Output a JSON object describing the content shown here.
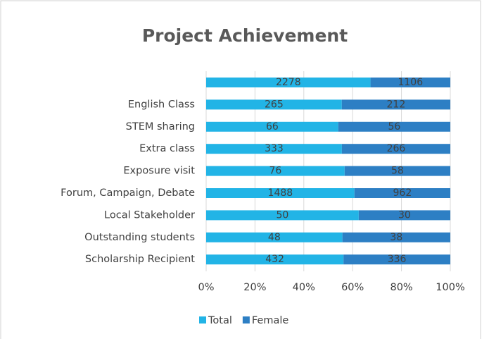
{
  "chart_data": {
    "type": "bar",
    "orientation": "horizontal",
    "stacking": "percent",
    "title": "Project Achievement",
    "categories": [
      null,
      "English Class",
      "STEM sharing",
      "Extra class",
      "Exposure visit ",
      "Forum, Campaign, Debate",
      "Local Stakeholder",
      "Outstanding students",
      "Scholarship Recipient"
    ],
    "series": [
      {
        "name": "Total",
        "color": "#22b4e6",
        "values": [
          2278,
          265,
          66,
          333,
          76,
          1488,
          50,
          48,
          432
        ]
      },
      {
        "name": "Female",
        "color": "#2d7fc4",
        "values": [
          1106,
          212,
          56,
          266,
          58,
          962,
          30,
          38,
          336
        ]
      }
    ],
    "xlim": [
      0,
      100
    ],
    "xticks": [
      {
        "value": 0,
        "label": "0%"
      },
      {
        "value": 20,
        "label": "20%"
      },
      {
        "value": 40,
        "label": "40%"
      },
      {
        "value": 60,
        "label": "60%"
      },
      {
        "value": 80,
        "label": "80%"
      },
      {
        "value": 100,
        "label": "100%"
      }
    ],
    "grid": true,
    "legend": "bottom"
  }
}
